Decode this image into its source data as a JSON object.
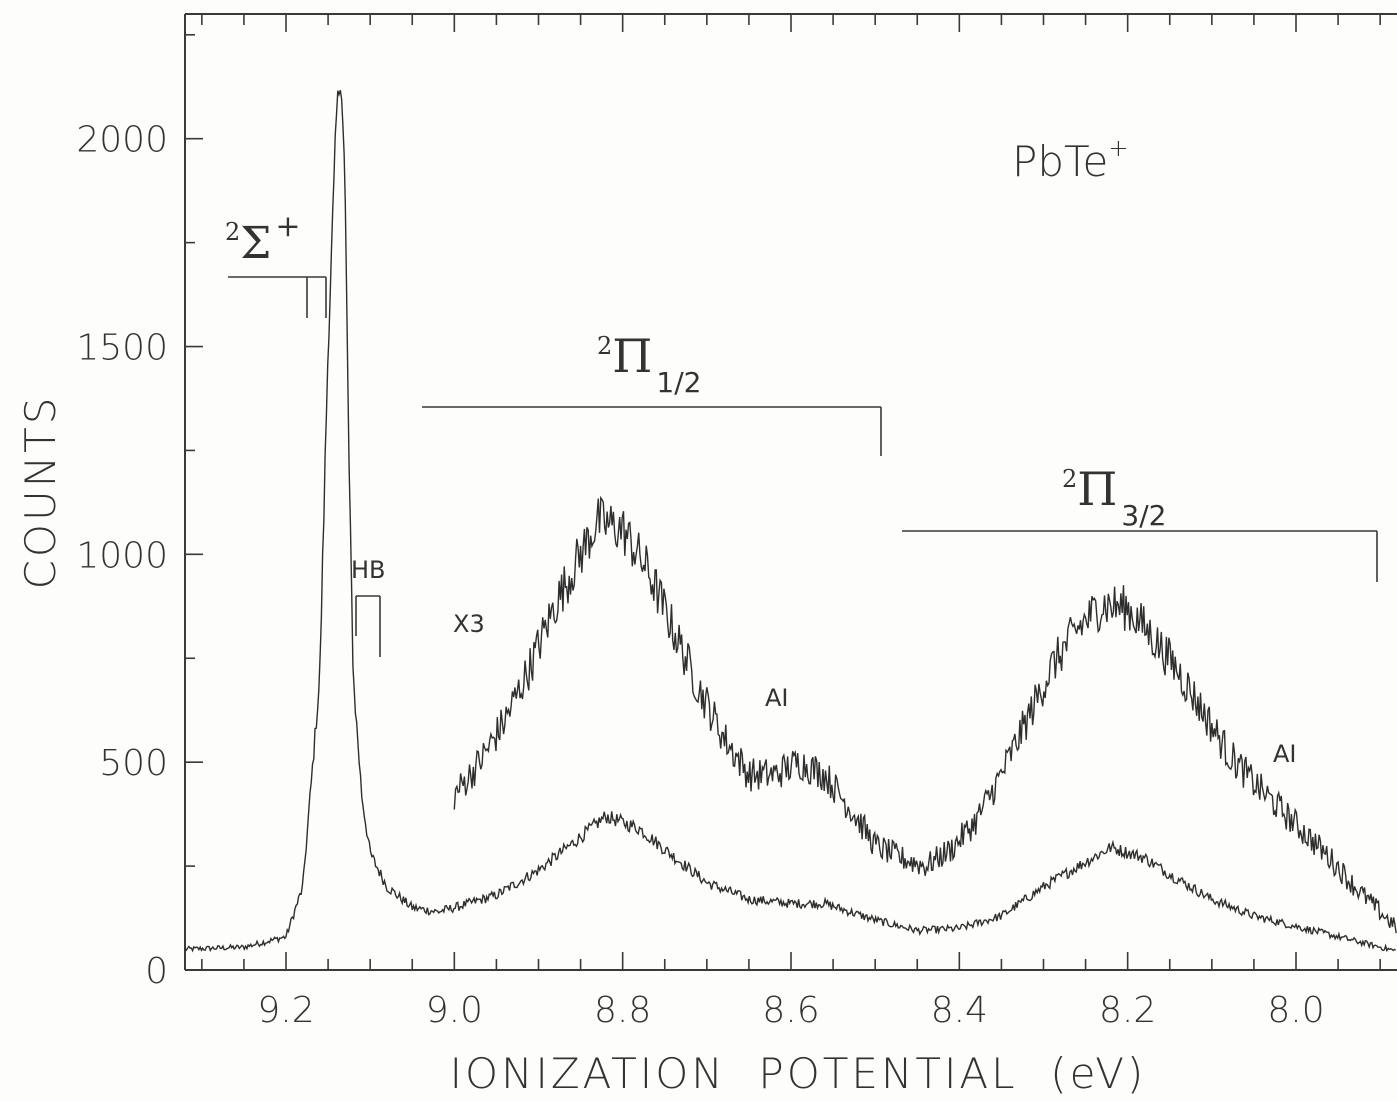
{
  "chart_data": {
    "type": "line",
    "title": "",
    "xlabel": "IONIZATION  POTENTIAL  (eV)",
    "ylabel": "COUNTS",
    "xlim": [
      9.32,
      7.88
    ],
    "ylim": [
      0,
      2300
    ],
    "x_reversed": true,
    "x_ticks": [
      "9.2",
      "9.0",
      "8.8",
      "8.6",
      "8.4",
      "8.2",
      "8.0"
    ],
    "y_ticks": [
      "0",
      "500",
      "1000",
      "1500",
      "2000"
    ],
    "grid": false,
    "series": [
      {
        "x": [
          9.32,
          9.25,
          9.2,
          9.18,
          9.16,
          9.15,
          9.14,
          9.135,
          9.13,
          9.125,
          9.12,
          9.11,
          9.1,
          9.08,
          9.05,
          9.02,
          9.0,
          8.95,
          8.9,
          8.85,
          8.82,
          8.78,
          8.75,
          8.7,
          8.65,
          8.6,
          8.56,
          8.5,
          8.45,
          8.4,
          8.35,
          8.3,
          8.25,
          8.22,
          8.18,
          8.15,
          8.1,
          8.05,
          8.0,
          7.95,
          7.9,
          7.88
        ],
        "values": [
          50,
          55,
          80,
          200,
          700,
          1500,
          2050,
          2170,
          1900,
          1200,
          700,
          420,
          280,
          200,
          150,
          140,
          150,
          180,
          240,
          320,
          370,
          340,
          290,
          210,
          170,
          160,
          160,
          120,
          95,
          100,
          130,
          200,
          260,
          295,
          270,
          230,
          170,
          130,
          105,
          80,
          55,
          45
        ]
      },
      {
        "name": "X3",
        "x": [
          9.0,
          8.97,
          8.94,
          8.91,
          8.88,
          8.85,
          8.83,
          8.8,
          8.77,
          8.74,
          8.71,
          8.68,
          8.65,
          8.62,
          8.59,
          8.56,
          8.53,
          8.5,
          8.47,
          8.44,
          8.41,
          8.38,
          8.35,
          8.32,
          8.29,
          8.26,
          8.23,
          8.2,
          8.17,
          8.14,
          8.11,
          8.08,
          8.05,
          8.02,
          7.99,
          7.96,
          7.93,
          7.9,
          7.88
        ],
        "values": [
          420,
          500,
          600,
          730,
          880,
          1000,
          1080,
          1060,
          960,
          820,
          680,
          560,
          470,
          470,
          500,
          470,
          390,
          300,
          270,
          250,
          290,
          360,
          470,
          600,
          730,
          820,
          880,
          870,
          800,
          720,
          620,
          520,
          450,
          390,
          330,
          270,
          200,
          140,
          100
        ]
      }
    ],
    "annotations": {
      "species_main": "PbTe",
      "species_sup": "+",
      "multiplier": "X3",
      "hb": "HB",
      "ai_1": "AI",
      "ai_2": "AI",
      "sigma_sup": "2",
      "sigma_sym": "Σ",
      "sigma_plus": "+",
      "pi12_sup": "2",
      "pi12_sym": "Π",
      "pi12_sub": "1/2",
      "pi32_sup": "2",
      "pi32_sym": "Π",
      "pi32_sub": "3/2"
    }
  }
}
